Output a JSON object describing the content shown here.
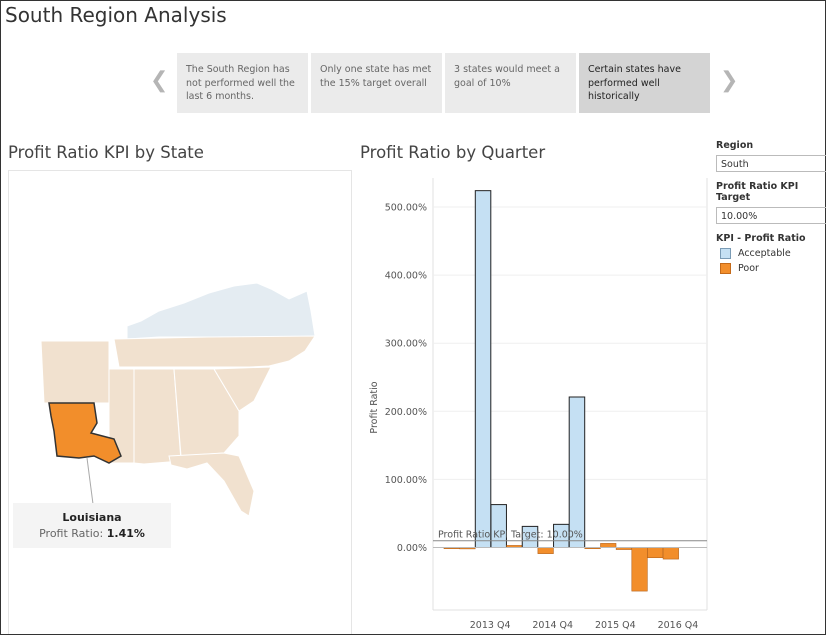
{
  "title": "South Region Analysis",
  "story_points": [
    {
      "text": "The South Region has not performed well the last 6 months."
    },
    {
      "text": "Only one state has met the 15% target overall"
    },
    {
      "text": "3 states would meet a goal of 10%"
    },
    {
      "text": "Certain states have performed well historically"
    }
  ],
  "map": {
    "title": "Profit Ratio KPI by State",
    "tooltip": {
      "state": "Louisiana",
      "label": "Profit Ratio:",
      "value": "1.41%"
    }
  },
  "filters": {
    "region_label": "Region",
    "region_value": "South",
    "target_label": "Profit Ratio KPI Target",
    "target_value": "10.00%",
    "legend_title": "KPI - Profit Ratio",
    "legend_items": [
      {
        "label": "Acceptable",
        "color": "#c5e0f3"
      },
      {
        "label": "Poor",
        "color": "#f28e2b"
      }
    ]
  },
  "colors": {
    "acceptable": "#c5e0f3",
    "poor": "#f28e2b",
    "map_poor": "#f1e1cf",
    "map_ok": "#e4ecf2",
    "map_selected": "#f28e2b"
  },
  "chart_data": {
    "type": "bar",
    "title": "Profit Ratio by Quarter",
    "ylabel": "Profit Ratio",
    "xlabel": "",
    "ylim": [
      -50,
      560
    ],
    "y_ticks": [
      0,
      100,
      200,
      300,
      400,
      500
    ],
    "y_tick_labels": [
      "0.00%",
      "100.00%",
      "200.00%",
      "300.00%",
      "400.00%",
      "500.00%"
    ],
    "x_tick_labels": [
      "2013 Q4",
      "2014 Q4",
      "2015 Q4",
      "2016 Q4"
    ],
    "x_tick_after_index": [
      3,
      7,
      11,
      15
    ],
    "reference_line": {
      "value": 10,
      "label": "Profit Ratio KPI Target: 10.00%"
    },
    "values": [
      -1,
      -2,
      524,
      63,
      3,
      31,
      -9,
      34,
      221,
      -1,
      6,
      -3,
      -64,
      -15,
      -17
    ],
    "status": [
      "poor",
      "poor",
      "acceptable",
      "acceptable",
      "poor",
      "acceptable",
      "poor",
      "acceptable",
      "acceptable",
      "poor",
      "poor",
      "poor",
      "poor",
      "poor",
      "poor"
    ]
  }
}
